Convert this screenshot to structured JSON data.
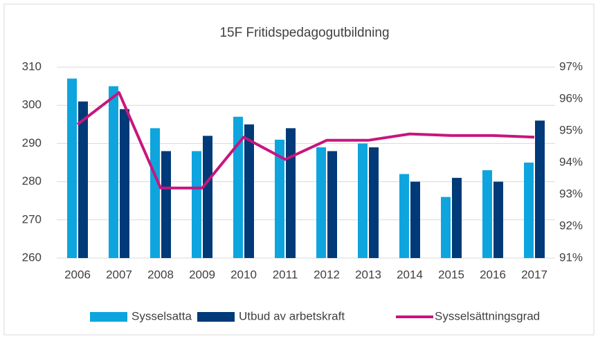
{
  "chart_data": {
    "type": "bar_line",
    "title": "15F Fritidspedagogutbildning",
    "categories": [
      "2006",
      "2007",
      "2008",
      "2009",
      "2010",
      "2011",
      "2012",
      "2013",
      "2014",
      "2015",
      "2016",
      "2017"
    ],
    "series": [
      {
        "name": "Sysselsatta",
        "type": "bar",
        "color": "#0ea5df",
        "values": [
          307,
          305,
          294,
          288,
          297,
          291,
          289,
          290,
          282,
          276,
          283,
          285
        ]
      },
      {
        "name": "Utbud av arbetskraft",
        "type": "bar",
        "color": "#003a78",
        "values": [
          301,
          299,
          288,
          292,
          295,
          294,
          288,
          289,
          280,
          281,
          280,
          296
        ]
      },
      {
        "name": "Sysselsättningsgrad",
        "type": "line",
        "axis": "y2",
        "color": "#c8157d",
        "values": [
          95.2,
          96.2,
          93.2,
          93.2,
          94.8,
          94.1,
          94.7,
          94.7,
          94.9,
          94.85,
          94.85,
          94.8
        ]
      }
    ],
    "ylim": [
      260,
      310
    ],
    "yticks": [
      260,
      270,
      280,
      290,
      300,
      310
    ],
    "y2lim": [
      91,
      97
    ],
    "y2ticks": [
      {
        "value": 91,
        "label": "91%"
      },
      {
        "value": 92,
        "label": "92%"
      },
      {
        "value": 93,
        "label": "93%"
      },
      {
        "value": 94,
        "label": "94%"
      },
      {
        "value": 95,
        "label": "95%"
      },
      {
        "value": 96,
        "label": "96%"
      },
      {
        "value": 97,
        "label": "97%"
      }
    ],
    "grid": true,
    "legend": "bottom"
  }
}
